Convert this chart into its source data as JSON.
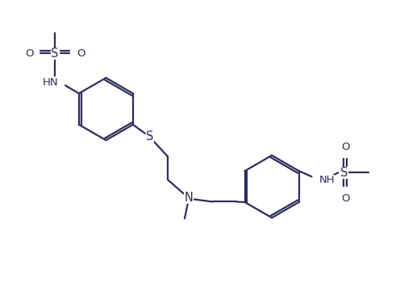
{
  "bg_color": "#ffffff",
  "line_color": "#2d2d5a",
  "line_width": 1.6,
  "font_size": 9.5,
  "fig_width": 5.01,
  "fig_height": 3.65,
  "dpi": 100,
  "xlim": [
    0,
    10
  ],
  "ylim": [
    0,
    7.3
  ]
}
